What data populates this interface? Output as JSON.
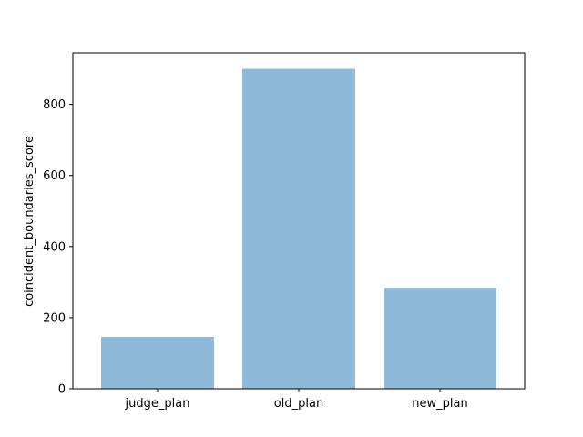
{
  "chart_data": {
    "type": "bar",
    "categories": [
      "judge_plan",
      "old_plan",
      "new_plan"
    ],
    "values": [
      146,
      900,
      284
    ],
    "title": "",
    "xlabel": "",
    "ylabel": "coincident_boundaries_score",
    "ylim": [
      0,
      945
    ],
    "yticks": [
      0,
      200,
      400,
      600,
      800
    ],
    "bar_color": "#8fb9d9",
    "grid": false,
    "legend": "none"
  }
}
